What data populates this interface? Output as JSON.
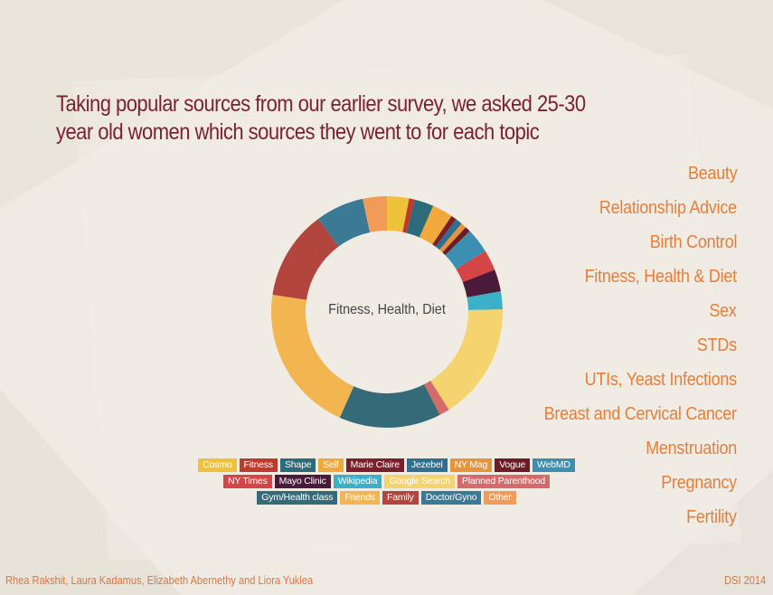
{
  "title": "Taking popular sources from our earlier survey, we asked 25-30 year old women which sources they went to for each topic",
  "topics": [
    "Beauty",
    "Relationship Advice",
    "Birth Control",
    "Fitness, Health & Diet",
    "Sex",
    "STDs",
    "UTIs, Yeast Infections",
    "Breast and Cervical Cancer",
    "Menstruation",
    "Pregnancy",
    "Fertility"
  ],
  "chart_data": {
    "type": "pie",
    "variant": "donut",
    "center_label": "Fitness, Health, Diet",
    "categories": [
      "Cosmo",
      "Fitness",
      "Shape",
      "Self",
      "Marie Claire",
      "Jezebel",
      "NY Mag",
      "Vogue",
      "WebMD",
      "NY Times",
      "Mayo Clinic",
      "Wikipedia",
      "Google Search",
      "Planned Parenthood",
      "Gym/Health class",
      "Friends",
      "Family",
      "Doctor/Gyno",
      "Other"
    ],
    "values": [
      3.2,
      0.8,
      2.8,
      3.0,
      0.8,
      1.0,
      0.8,
      0.8,
      3.6,
      3.0,
      3.2,
      2.6,
      17.0,
      1.5,
      14.8,
      21.5,
      13.0,
      7.0,
      3.5
    ],
    "colors": [
      "#f0c23c",
      "#c0392b",
      "#2b6b7a",
      "#f2a93b",
      "#7b1f2a",
      "#2f6f8f",
      "#e8943a",
      "#6e1b28",
      "#3b8fb0",
      "#d64545",
      "#4a1a3a",
      "#3bb0c9",
      "#f5d36e",
      "#d46a6a",
      "#356a78",
      "#f2b54f",
      "#b2453e",
      "#3a7a95",
      "#f09b5a"
    ],
    "legend_rows": [
      [
        "Cosmo",
        "Fitness",
        "Shape",
        "Self",
        "Marie Claire",
        "Jezebel",
        "NY Mag",
        "Vogue",
        "WebMD"
      ],
      [
        "NY Times",
        "Mayo Clinic",
        "Wikipedia",
        "Google Search",
        "Planned Parenthood"
      ],
      [
        "Gym/Health class",
        "Friends",
        "Family",
        "Doctor/Gyno",
        "Other"
      ]
    ]
  },
  "footer": {
    "authors": "Rhea Rakshit, Laura Kadamus, Elizabeth Abernethy and Liora Yuklea",
    "tag": "DSI 2014"
  }
}
